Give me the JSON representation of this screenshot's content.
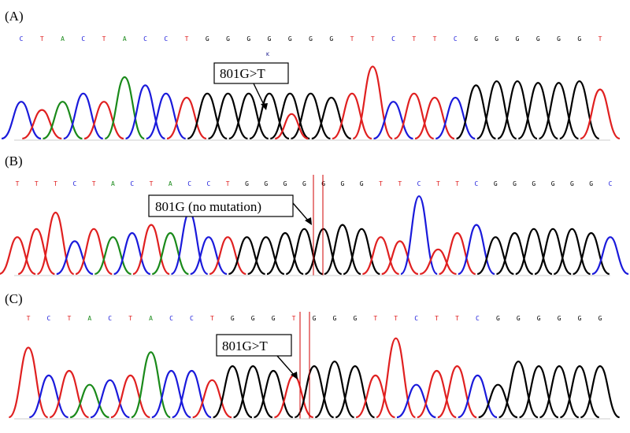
{
  "colors": {
    "A": "#d00000",
    "C": "#1a1adb",
    "G": "#000000",
    "T": "#e02020",
    "green": "#1a8a1a",
    "marker": "#d00000"
  },
  "panels": [
    {
      "label": "(A)",
      "bases": "CTACTACCTGGGGGGGTTCTTCGGGGGGT",
      "secondary_call": "K",
      "callout": "801G>T"
    },
    {
      "label": "(B)",
      "bases": "TTTCTACTACCTGGGGGGGTTCTTCGGGGGGC",
      "callout": "801G (no mutation)"
    },
    {
      "label": "(C)",
      "bases": "TCTACTACCTGGGTGGGTTCTTCGGGGGG",
      "callout": "801G>T"
    }
  ]
}
